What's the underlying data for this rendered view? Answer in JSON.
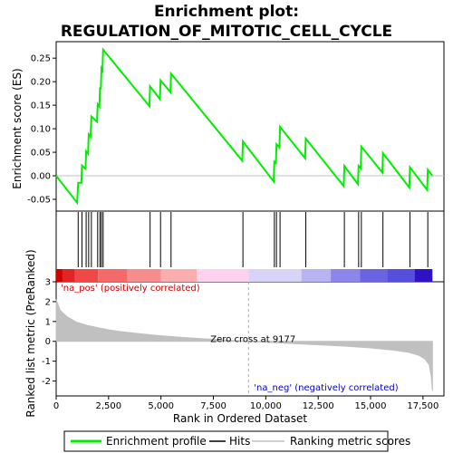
{
  "chart_data": {
    "type": "line",
    "title_line1": "Enrichment plot:",
    "title_line2": "REGULATION_OF_MITOTIC_CELL_CYCLE",
    "xlabel": "Rank in Ordered Dataset",
    "ylabel_top": "Enrichment score (ES)",
    "ylabel_bottom": "Ranked list metric (PreRanked)",
    "xlim": [
      0,
      18500
    ],
    "x_ticks": [
      0,
      2500,
      5000,
      7500,
      10000,
      12500,
      15000,
      17500
    ],
    "x_tick_labels": [
      "0",
      "2,500",
      "5,000",
      "7,500",
      "10,000",
      "12,500",
      "15,000",
      "17,500"
    ],
    "es_ylim": [
      -0.075,
      0.285
    ],
    "es_ticks": [
      -0.05,
      0.0,
      0.05,
      0.1,
      0.15,
      0.2,
      0.25
    ],
    "es_tick_labels": [
      "-0.05",
      "0.00",
      "0.05",
      "0.10",
      "0.15",
      "0.20",
      "0.25"
    ],
    "metric_ylim": [
      -2.75,
      3.0
    ],
    "metric_ticks": [
      -2,
      -1,
      0,
      1,
      2,
      3
    ],
    "metric_tick_labels": [
      "-2",
      "-1",
      "0",
      "1",
      "2",
      "3"
    ],
    "zero_cross": 9177,
    "zero_cross_label": "Zero cross at 9177",
    "pos_label": "'na_pos' (positively correlated)",
    "neg_label": "'na_neg' (negatively correlated)",
    "n_genes": 17950,
    "es_points": [
      [
        0,
        0.0
      ],
      [
        1000,
        -0.057
      ],
      [
        1050,
        -0.015
      ],
      [
        1200,
        -0.015
      ],
      [
        1230,
        0.022
      ],
      [
        1400,
        0.015
      ],
      [
        1430,
        0.052
      ],
      [
        1520,
        0.047
      ],
      [
        1550,
        0.088
      ],
      [
        1640,
        0.083
      ],
      [
        1680,
        0.126
      ],
      [
        1950,
        0.115
      ],
      [
        1980,
        0.152
      ],
      [
        2060,
        0.147
      ],
      [
        2090,
        0.188
      ],
      [
        2130,
        0.184
      ],
      [
        2160,
        0.228
      ],
      [
        2210,
        0.224
      ],
      [
        2240,
        0.268
      ],
      [
        4450,
        0.148
      ],
      [
        4480,
        0.19
      ],
      [
        4950,
        0.163
      ],
      [
        4980,
        0.203
      ],
      [
        5450,
        0.178
      ],
      [
        5480,
        0.217
      ],
      [
        8880,
        0.032
      ],
      [
        8910,
        0.073
      ],
      [
        10380,
        -0.012
      ],
      [
        10410,
        0.03
      ],
      [
        10480,
        0.027
      ],
      [
        10510,
        0.067
      ],
      [
        10650,
        0.06
      ],
      [
        10680,
        0.104
      ],
      [
        11880,
        0.037
      ],
      [
        11910,
        0.079
      ],
      [
        13720,
        -0.022
      ],
      [
        13750,
        0.021
      ],
      [
        14400,
        -0.018
      ],
      [
        14430,
        0.021
      ],
      [
        14530,
        0.016
      ],
      [
        14560,
        0.062
      ],
      [
        15560,
        0.007
      ],
      [
        15590,
        0.048
      ],
      [
        16850,
        -0.025
      ],
      [
        16880,
        0.018
      ],
      [
        17700,
        -0.03
      ],
      [
        17730,
        0.013
      ],
      [
        17950,
        0.0
      ]
    ],
    "hits": [
      1050,
      1230,
      1430,
      1550,
      1680,
      1980,
      2090,
      2160,
      2240,
      4480,
      4980,
      5480,
      8910,
      10410,
      10510,
      10680,
      11910,
      13750,
      14430,
      14560,
      15590,
      16880,
      17730
    ],
    "metric_profile": [
      [
        0,
        2.1
      ],
      [
        200,
        1.55
      ],
      [
        500,
        1.25
      ],
      [
        1000,
        0.95
      ],
      [
        1500,
        0.8
      ],
      [
        2000,
        0.68
      ],
      [
        2500,
        0.58
      ],
      [
        3000,
        0.5
      ],
      [
        4000,
        0.38
      ],
      [
        5000,
        0.28
      ],
      [
        6000,
        0.2
      ],
      [
        7000,
        0.13
      ],
      [
        8000,
        0.07
      ],
      [
        9177,
        0.0
      ],
      [
        10000,
        -0.05
      ],
      [
        11000,
        -0.1
      ],
      [
        12000,
        -0.15
      ],
      [
        13000,
        -0.2
      ],
      [
        14000,
        -0.26
      ],
      [
        15000,
        -0.33
      ],
      [
        16000,
        -0.43
      ],
      [
        16800,
        -0.55
      ],
      [
        17300,
        -0.7
      ],
      [
        17600,
        -0.9
      ],
      [
        17800,
        -1.2
      ],
      [
        17900,
        -1.8
      ],
      [
        17950,
        -2.5
      ]
    ],
    "colorbar": [
      {
        "from": 0,
        "to": 300,
        "color": "#cc0000"
      },
      {
        "from": 300,
        "to": 900,
        "color": "#e32424"
      },
      {
        "from": 900,
        "to": 2000,
        "color": "#f04848"
      },
      {
        "from": 2000,
        "to": 3400,
        "color": "#f46a6a"
      },
      {
        "from": 3400,
        "to": 5000,
        "color": "#f78c8c"
      },
      {
        "from": 5000,
        "to": 6700,
        "color": "#faaeae"
      },
      {
        "from": 6700,
        "to": 9177,
        "color": "#fdd2ee"
      },
      {
        "from": 9177,
        "to": 11700,
        "color": "#d8d4f8"
      },
      {
        "from": 11700,
        "to": 13100,
        "color": "#b8b4f2"
      },
      {
        "from": 13100,
        "to": 14500,
        "color": "#8c86ea"
      },
      {
        "from": 14500,
        "to": 15800,
        "color": "#6a64e0"
      },
      {
        "from": 15800,
        "to": 17100,
        "color": "#5550db"
      },
      {
        "from": 17100,
        "to": 17950,
        "color": "#2f12c6"
      }
    ],
    "legend": [
      {
        "label": "Enrichment profile",
        "color": "#00ee00"
      },
      {
        "label": "Hits",
        "color": "#000000"
      },
      {
        "label": "Ranking metric scores",
        "color": "#c0c0c0"
      }
    ],
    "colors": {
      "es_line": "#00ee00",
      "metric_fill": "#c0c0c0",
      "pos_text": "#cc0000",
      "neg_text": "#0000cc",
      "zero_line": "#c0c0c0"
    }
  }
}
